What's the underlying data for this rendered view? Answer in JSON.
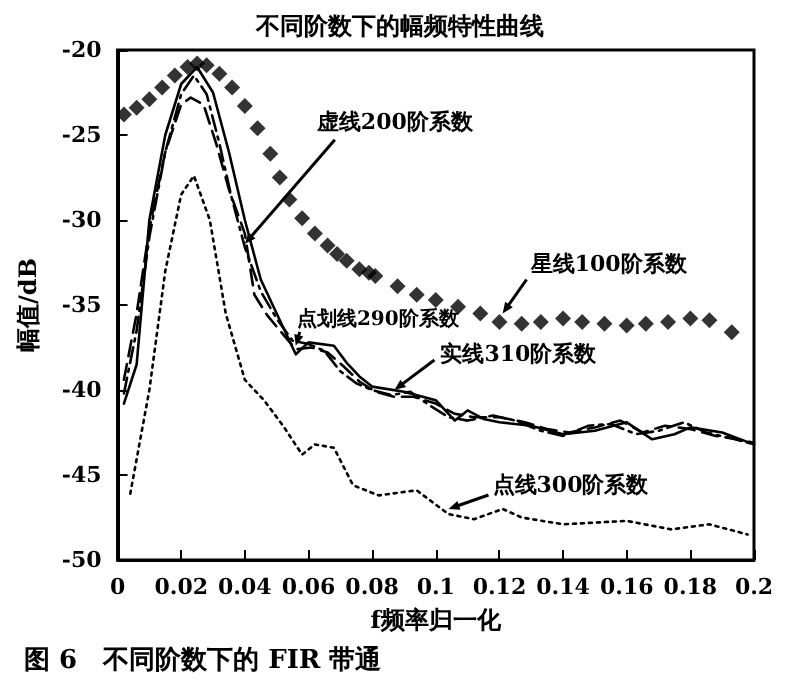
{
  "chart_data": {
    "type": "line",
    "title": "不同阶数下的幅频特性曲线",
    "xlabel": "f频率归一化",
    "ylabel": "幅值/dB",
    "xlim": [
      0,
      0.2
    ],
    "xticks": [
      0,
      0.02,
      0.04,
      0.06,
      0.08,
      0.1,
      0.12,
      0.14,
      0.16,
      0.18,
      0.2
    ],
    "ylim": [
      -50,
      -20
    ],
    "yticks": [
      -50,
      -45,
      -40,
      -35,
      -30,
      -25,
      -20
    ],
    "grid": false,
    "series": [
      {
        "type": "scatter",
        "marker": "diamond",
        "color": "#000000",
        "x": [
          0.002,
          0.006,
          0.01,
          0.014,
          0.018,
          0.022,
          0.025,
          0.028,
          0.032,
          0.036,
          0.04,
          0.044,
          0.048,
          0.051,
          0.054,
          0.058,
          0.062,
          0.066,
          0.069,
          0.072,
          0.076,
          0.079,
          0.081,
          0.088,
          0.094,
          0.1,
          0.107,
          0.114,
          0.12,
          0.127,
          0.133,
          0.14,
          0.146,
          0.153,
          0.16,
          0.166,
          0.173,
          0.18,
          0.186,
          0.193
        ],
        "values": [
          -23.8,
          -23.4,
          -22.9,
          -22.2,
          -21.5,
          -21.0,
          -20.8,
          -20.9,
          -21.4,
          -22.2,
          -23.3,
          -24.6,
          -26.1,
          -27.5,
          -28.8,
          -29.9,
          -30.8,
          -31.5,
          -32.0,
          -32.4,
          -32.9,
          -33.1,
          -33.3,
          -33.9,
          -34.4,
          -34.7,
          -35.1,
          -35.5,
          -36.0,
          -36.1,
          -36.0,
          -35.8,
          -36.0,
          -36.1,
          -36.2,
          -36.1,
          -36.0,
          -35.8,
          -35.9,
          -36.6
        ]
      },
      {
        "line_style": "dashed",
        "marker": "none",
        "color": "#000000",
        "x": [
          0.002,
          0.006,
          0.01,
          0.015,
          0.02,
          0.023,
          0.027,
          0.031,
          0.035,
          0.04,
          0.043,
          0.047,
          0.051,
          0.056,
          0.061,
          0.066,
          0.071,
          0.076,
          0.081,
          0.087,
          0.093,
          0.1,
          0.106,
          0.112,
          0.12,
          0.128,
          0.135,
          0.142,
          0.15,
          0.158,
          0.165,
          0.172,
          0.18,
          0.188,
          0.195,
          0.2
        ],
        "values": [
          -39.4,
          -35.5,
          -30.5,
          -26,
          -23.2,
          -22.8,
          -23.2,
          -25.5,
          -28.2,
          -30.8,
          -34.4,
          -35.6,
          -36.5,
          -37.6,
          -37.5,
          -37.8,
          -38.6,
          -39.5,
          -40.1,
          -40.4,
          -40.4,
          -40.8,
          -41.4,
          -41.6,
          -41.6,
          -41.9,
          -42.3,
          -42.5,
          -42.2,
          -41.8,
          -42.5,
          -42.1,
          -42.3,
          -42.7,
          -42.9,
          -43.1
        ]
      },
      {
        "line_style": "dashdot",
        "marker": "none",
        "color": "#000000",
        "x": [
          0.002,
          0.006,
          0.01,
          0.015,
          0.02,
          0.024,
          0.028,
          0.032,
          0.036,
          0.04,
          0.045,
          0.05,
          0.055,
          0.06,
          0.065,
          0.07,
          0.075,
          0.08,
          0.086,
          0.092,
          0.098,
          0.104,
          0.11,
          0.118,
          0.125,
          0.133,
          0.14,
          0.148,
          0.155,
          0.163,
          0.17,
          0.178,
          0.185,
          0.192,
          0.2
        ],
        "values": [
          -40.2,
          -36.5,
          -31,
          -26,
          -22.6,
          -21.5,
          -22.6,
          -25.5,
          -28.8,
          -31.6,
          -34.2,
          -35.8,
          -37.1,
          -37.3,
          -37.7,
          -38.9,
          -39.6,
          -40.0,
          -40.3,
          -40.1,
          -40.9,
          -41.6,
          -41.8,
          -41.5,
          -41.8,
          -42.4,
          -42.7,
          -42.1,
          -42.0,
          -42.6,
          -42.4,
          -41.9,
          -42.5,
          -42.8,
          -43.2
        ]
      },
      {
        "line_style": "solid",
        "marker": "none",
        "color": "#000000",
        "x": [
          0.002,
          0.006,
          0.01,
          0.015,
          0.02,
          0.025,
          0.03,
          0.035,
          0.04,
          0.045,
          0.05,
          0.056,
          0.06,
          0.068,
          0.072,
          0.076,
          0.08,
          0.09,
          0.1,
          0.106,
          0.11,
          0.115,
          0.12,
          0.13,
          0.14,
          0.15,
          0.16,
          0.168,
          0.175,
          0.18,
          0.19,
          0.2
        ],
        "values": [
          -40.8,
          -38.5,
          -30,
          -25,
          -22,
          -21,
          -22.5,
          -26,
          -30,
          -33.5,
          -35.5,
          -37.9,
          -37.2,
          -37.4,
          -38.4,
          -39.2,
          -39.8,
          -40.1,
          -40.6,
          -41.8,
          -41.2,
          -41.7,
          -41.9,
          -42.1,
          -42.6,
          -42.4,
          -41.9,
          -42.9,
          -42.6,
          -42.2,
          -42.5,
          -43.2
        ]
      },
      {
        "line_style": "dotted",
        "marker": "none",
        "color": "#000000",
        "x": [
          0.004,
          0.01,
          0.015,
          0.02,
          0.024,
          0.029,
          0.034,
          0.04,
          0.046,
          0.052,
          0.058,
          0.062,
          0.068,
          0.074,
          0.082,
          0.094,
          0.104,
          0.112,
          0.121,
          0.127,
          0.14,
          0.16,
          0.174,
          0.186,
          0.198
        ],
        "values": [
          -46.1,
          -40,
          -33,
          -28.5,
          -27.4,
          -30,
          -35.5,
          -39.4,
          -40.6,
          -42.1,
          -43.8,
          -43.2,
          -43.4,
          -45.6,
          -46.2,
          -45.9,
          -47.3,
          -47.6,
          -47.0,
          -47.5,
          -47.9,
          -47.7,
          -48.2,
          -47.9,
          -48.5
        ]
      }
    ],
    "annotations": [
      {
        "text": "虚线200阶系数",
        "x": 0.04,
        "y": -31.4
      },
      {
        "text": "星线100阶系数",
        "x": 0.121,
        "y": -35.5
      },
      {
        "text": "点划线290阶系数",
        "x": 0.056,
        "y": -37.4
      },
      {
        "text": "实线310阶系数",
        "x": 0.087,
        "y": -40
      },
      {
        "text": "点线300阶系数",
        "x": 0.104,
        "y": -47
      },
      "图 6　不同阶数下的 FIR 带通"
    ]
  }
}
